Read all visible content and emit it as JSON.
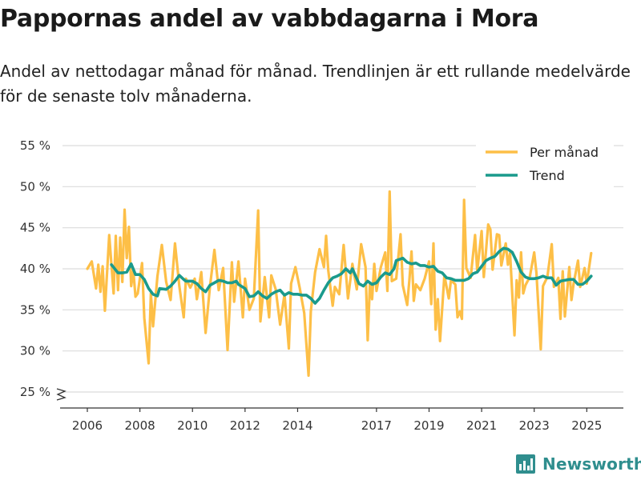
{
  "title": "Pappornas andel av vabbdagarna i Mora",
  "subtitle": "Andel av nettodagar månad för månad. Trendlinjen är ett rullande medelvärde för de senaste tolv månaderna.",
  "brand": "Newsworthy",
  "colors": {
    "monthly": "#fdbf47",
    "trend": "#1a9a8c",
    "grid": "#dcdcdc",
    "brand": "#2f8e8e"
  },
  "chart_data": {
    "type": "line",
    "xlabel": "",
    "ylabel": "",
    "x_start": "2006-01",
    "x_end": "2025-06",
    "x_ticks": [
      {
        "label": "2006",
        "year": 2006
      },
      {
        "label": "2008",
        "year": 2008
      },
      {
        "label": "2010",
        "year": 2010
      },
      {
        "label": "2012",
        "year": 2012
      },
      {
        "label": "2014",
        "year": 2014
      },
      {
        "label": "2017",
        "year": 2017
      },
      {
        "label": "2019",
        "year": 2019
      },
      {
        "label": "2021",
        "year": 2021
      },
      {
        "label": "2023",
        "year": 2023
      },
      {
        "label": "2025",
        "year": 2025
      }
    ],
    "ylim": [
      25,
      55
    ],
    "y_ticks": [
      {
        "value": 25,
        "label": "25 %"
      },
      {
        "value": 30,
        "label": "30 %"
      },
      {
        "value": 35,
        "label": "35 %"
      },
      {
        "value": 40,
        "label": "40 %"
      },
      {
        "value": 45,
        "label": "45 %"
      },
      {
        "value": 50,
        "label": "50 %"
      },
      {
        "value": 55,
        "label": "55 %"
      }
    ],
    "axis_break": true,
    "grid": true,
    "legend": {
      "position": "top-right",
      "entries": [
        "Per månad",
        "Trend"
      ]
    },
    "series": [
      {
        "name": "Per månad",
        "key": "monthly",
        "points": [
          [
            "2006-01",
            40.0
          ],
          [
            "2006-03",
            40.9
          ],
          [
            "2006-05",
            37.6
          ],
          [
            "2006-06",
            40.5
          ],
          [
            "2006-07",
            37.2
          ],
          [
            "2006-08",
            40.3
          ],
          [
            "2006-09",
            34.9
          ],
          [
            "2006-11",
            44.1
          ],
          [
            "2007-01",
            37.0
          ],
          [
            "2007-02",
            44.0
          ],
          [
            "2007-03",
            37.4
          ],
          [
            "2007-04",
            43.8
          ],
          [
            "2007-05",
            38.4
          ],
          [
            "2007-06",
            47.2
          ],
          [
            "2007-07",
            41.3
          ],
          [
            "2007-08",
            45.1
          ],
          [
            "2007-09",
            37.9
          ],
          [
            "2007-10",
            39.8
          ],
          [
            "2007-11",
            36.6
          ],
          [
            "2007-12",
            37.0
          ],
          [
            "2008-02",
            40.7
          ],
          [
            "2008-03",
            34.0
          ],
          [
            "2008-05",
            28.5
          ],
          [
            "2008-06",
            37.0
          ],
          [
            "2008-07",
            33.0
          ],
          [
            "2008-09",
            39.1
          ],
          [
            "2008-11",
            42.9
          ],
          [
            "2009-01",
            38.4
          ],
          [
            "2009-03",
            36.2
          ],
          [
            "2009-05",
            43.1
          ],
          [
            "2009-07",
            37.9
          ],
          [
            "2009-09",
            34.1
          ],
          [
            "2009-10",
            38.8
          ],
          [
            "2009-12",
            37.7
          ],
          [
            "2010-02",
            38.8
          ],
          [
            "2010-03",
            36.3
          ],
          [
            "2010-05",
            39.6
          ],
          [
            "2010-07",
            32.2
          ],
          [
            "2010-09",
            37.9
          ],
          [
            "2010-11",
            42.3
          ],
          [
            "2011-01",
            37.4
          ],
          [
            "2011-03",
            40.1
          ],
          [
            "2011-05",
            30.1
          ],
          [
            "2011-07",
            40.8
          ],
          [
            "2011-08",
            36.0
          ],
          [
            "2011-10",
            40.9
          ],
          [
            "2011-12",
            34.1
          ],
          [
            "2012-01",
            38.8
          ],
          [
            "2012-03",
            35.0
          ],
          [
            "2012-05",
            36.4
          ],
          [
            "2012-07",
            47.1
          ],
          [
            "2012-08",
            33.6
          ],
          [
            "2012-10",
            39.0
          ],
          [
            "2012-12",
            34.1
          ],
          [
            "2013-01",
            39.2
          ],
          [
            "2013-03",
            37.5
          ],
          [
            "2013-05",
            33.2
          ],
          [
            "2013-07",
            36.9
          ],
          [
            "2013-09",
            30.3
          ],
          [
            "2013-10",
            38.2
          ],
          [
            "2013-12",
            40.2
          ],
          [
            "2014-02",
            37.6
          ],
          [
            "2014-04",
            34.6
          ],
          [
            "2014-06",
            27.0
          ],
          [
            "2014-07",
            34.8
          ],
          [
            "2014-09",
            39.6
          ],
          [
            "2014-11",
            42.4
          ],
          [
            "2015-01",
            40.2
          ],
          [
            "2015-02",
            44.0
          ],
          [
            "2015-03",
            39.8
          ],
          [
            "2015-05",
            35.5
          ],
          [
            "2015-06",
            37.8
          ],
          [
            "2015-08",
            36.9
          ],
          [
            "2015-10",
            42.9
          ],
          [
            "2015-12",
            36.4
          ],
          [
            "2016-02",
            40.6
          ],
          [
            "2016-04",
            37.5
          ],
          [
            "2016-06",
            43.0
          ],
          [
            "2016-08",
            40.2
          ],
          [
            "2016-09",
            31.3
          ],
          [
            "2016-10",
            38.2
          ],
          [
            "2016-11",
            36.3
          ],
          [
            "2016-12",
            40.6
          ],
          [
            "2017-01",
            37.3
          ],
          [
            "2017-03",
            40.2
          ],
          [
            "2017-05",
            42.0
          ],
          [
            "2017-06",
            37.3
          ],
          [
            "2017-07",
            49.4
          ],
          [
            "2017-08",
            38.5
          ],
          [
            "2017-10",
            38.8
          ],
          [
            "2017-12",
            44.2
          ],
          [
            "2018-01",
            38.0
          ],
          [
            "2018-03",
            35.6
          ],
          [
            "2018-04",
            38.6
          ],
          [
            "2018-05",
            42.1
          ],
          [
            "2018-06",
            36.1
          ],
          [
            "2018-07",
            38.1
          ],
          [
            "2018-09",
            37.4
          ],
          [
            "2018-11",
            38.8
          ],
          [
            "2019-01",
            40.9
          ],
          [
            "2019-02",
            35.7
          ],
          [
            "2019-03",
            43.1
          ],
          [
            "2019-04",
            32.6
          ],
          [
            "2019-05",
            36.3
          ],
          [
            "2019-06",
            31.2
          ],
          [
            "2019-08",
            39.2
          ],
          [
            "2019-10",
            36.4
          ],
          [
            "2019-11",
            38.6
          ],
          [
            "2020-01",
            38.1
          ],
          [
            "2020-02",
            34.1
          ],
          [
            "2020-03",
            34.8
          ],
          [
            "2020-04",
            33.9
          ],
          [
            "2020-05",
            48.4
          ],
          [
            "2020-06",
            40.1
          ],
          [
            "2020-08",
            38.9
          ],
          [
            "2020-10",
            44.1
          ],
          [
            "2020-11",
            39.7
          ],
          [
            "2021-01",
            44.6
          ],
          [
            "2021-02",
            39.0
          ],
          [
            "2021-04",
            45.4
          ],
          [
            "2021-05",
            44.8
          ],
          [
            "2021-06",
            39.9
          ],
          [
            "2021-08",
            44.2
          ],
          [
            "2021-09",
            44.1
          ],
          [
            "2021-10",
            40.4
          ],
          [
            "2021-12",
            43.1
          ],
          [
            "2022-01",
            40.5
          ],
          [
            "2022-02",
            41.9
          ],
          [
            "2022-04",
            31.9
          ],
          [
            "2022-05",
            38.6
          ],
          [
            "2022-06",
            36.5
          ],
          [
            "2022-07",
            42.0
          ],
          [
            "2022-08",
            37.0
          ],
          [
            "2022-09",
            38.0
          ],
          [
            "2022-11",
            39.0
          ],
          [
            "2023-01",
            42.0
          ],
          [
            "2023-02",
            39.5
          ],
          [
            "2023-04",
            30.2
          ],
          [
            "2023-05",
            37.9
          ],
          [
            "2023-07",
            39.0
          ],
          [
            "2023-09",
            43.0
          ],
          [
            "2023-10",
            37.8
          ],
          [
            "2023-12",
            38.9
          ],
          [
            "2024-01",
            33.9
          ],
          [
            "2024-02",
            39.7
          ],
          [
            "2024-03",
            34.2
          ],
          [
            "2024-05",
            40.2
          ],
          [
            "2024-06",
            36.2
          ],
          [
            "2024-07",
            38.2
          ],
          [
            "2024-09",
            41.0
          ],
          [
            "2024-10",
            37.8
          ],
          [
            "2024-12",
            40.1
          ],
          [
            "2025-01",
            38.2
          ],
          [
            "2025-03",
            41.9
          ]
        ]
      },
      {
        "name": "Trend",
        "key": "trend",
        "points": [
          [
            "2006-12",
            40.5
          ],
          [
            "2007-03",
            39.5
          ],
          [
            "2007-05",
            39.5
          ],
          [
            "2007-07",
            39.6
          ],
          [
            "2007-09",
            40.6
          ],
          [
            "2007-11",
            39.3
          ],
          [
            "2008-01",
            39.3
          ],
          [
            "2008-03",
            38.7
          ],
          [
            "2008-05",
            37.6
          ],
          [
            "2008-07",
            36.9
          ],
          [
            "2008-09",
            36.7
          ],
          [
            "2008-10",
            37.6
          ],
          [
            "2009-01",
            37.5
          ],
          [
            "2009-03",
            37.9
          ],
          [
            "2009-05",
            38.5
          ],
          [
            "2009-07",
            39.2
          ],
          [
            "2009-09",
            38.7
          ],
          [
            "2009-10",
            38.5
          ],
          [
            "2010-01",
            38.5
          ],
          [
            "2010-03",
            38.2
          ],
          [
            "2010-05",
            37.6
          ],
          [
            "2010-07",
            37.2
          ],
          [
            "2010-09",
            38.0
          ],
          [
            "2010-11",
            38.3
          ],
          [
            "2011-01",
            38.6
          ],
          [
            "2011-03",
            38.5
          ],
          [
            "2011-05",
            38.3
          ],
          [
            "2011-07",
            38.3
          ],
          [
            "2011-09",
            38.5
          ],
          [
            "2011-10",
            38.1
          ],
          [
            "2012-01",
            37.6
          ],
          [
            "2012-03",
            36.6
          ],
          [
            "2012-05",
            36.7
          ],
          [
            "2012-07",
            37.2
          ],
          [
            "2012-09",
            36.7
          ],
          [
            "2012-11",
            36.4
          ],
          [
            "2013-01",
            36.9
          ],
          [
            "2013-03",
            37.2
          ],
          [
            "2013-05",
            37.4
          ],
          [
            "2013-07",
            36.8
          ],
          [
            "2013-09",
            37.1
          ],
          [
            "2013-11",
            36.9
          ],
          [
            "2014-01",
            36.9
          ],
          [
            "2014-03",
            36.8
          ],
          [
            "2014-05",
            36.8
          ],
          [
            "2014-07",
            36.4
          ],
          [
            "2014-09",
            35.8
          ],
          [
            "2014-11",
            36.4
          ],
          [
            "2015-01",
            37.4
          ],
          [
            "2015-03",
            38.3
          ],
          [
            "2015-05",
            38.9
          ],
          [
            "2015-07",
            39.1
          ],
          [
            "2015-09",
            39.4
          ],
          [
            "2015-11",
            40.0
          ],
          [
            "2016-01",
            39.5
          ],
          [
            "2016-02",
            40.0
          ],
          [
            "2016-05",
            38.2
          ],
          [
            "2016-07",
            37.9
          ],
          [
            "2016-09",
            38.5
          ],
          [
            "2016-11",
            38.1
          ],
          [
            "2017-01",
            38.3
          ],
          [
            "2017-03",
            39.0
          ],
          [
            "2017-05",
            39.5
          ],
          [
            "2017-07",
            39.3
          ],
          [
            "2017-09",
            40.0
          ],
          [
            "2017-10",
            41.0
          ],
          [
            "2018-01",
            41.3
          ],
          [
            "2018-03",
            40.8
          ],
          [
            "2018-05",
            40.6
          ],
          [
            "2018-07",
            40.7
          ],
          [
            "2018-09",
            40.4
          ],
          [
            "2018-11",
            40.4
          ],
          [
            "2019-01",
            40.2
          ],
          [
            "2019-03",
            40.3
          ],
          [
            "2019-05",
            39.7
          ],
          [
            "2019-07",
            39.5
          ],
          [
            "2019-09",
            38.9
          ],
          [
            "2019-11",
            38.8
          ],
          [
            "2020-01",
            38.6
          ],
          [
            "2020-03",
            38.6
          ],
          [
            "2020-05",
            38.6
          ],
          [
            "2020-07",
            38.8
          ],
          [
            "2020-09",
            39.4
          ],
          [
            "2020-11",
            39.6
          ],
          [
            "2021-01",
            40.3
          ],
          [
            "2021-03",
            41.0
          ],
          [
            "2021-05",
            41.3
          ],
          [
            "2021-07",
            41.5
          ],
          [
            "2021-09",
            42.1
          ],
          [
            "2021-11",
            42.5
          ],
          [
            "2022-01",
            42.4
          ],
          [
            "2022-03",
            42.0
          ],
          [
            "2022-05",
            40.9
          ],
          [
            "2022-07",
            39.6
          ],
          [
            "2022-09",
            39.0
          ],
          [
            "2022-11",
            38.8
          ],
          [
            "2023-01",
            38.8
          ],
          [
            "2023-03",
            38.9
          ],
          [
            "2023-05",
            39.1
          ],
          [
            "2023-07",
            38.9
          ],
          [
            "2023-09",
            38.9
          ],
          [
            "2023-11",
            38.0
          ],
          [
            "2024-01",
            38.5
          ],
          [
            "2024-03",
            38.6
          ],
          [
            "2024-05",
            38.7
          ],
          [
            "2024-07",
            38.7
          ],
          [
            "2024-09",
            38.1
          ],
          [
            "2024-11",
            38.1
          ],
          [
            "2025-01",
            38.5
          ],
          [
            "2025-03",
            39.1
          ]
        ]
      }
    ]
  }
}
